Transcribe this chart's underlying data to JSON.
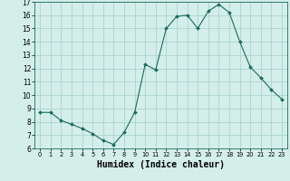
{
  "x": [
    0,
    1,
    2,
    3,
    4,
    5,
    6,
    7,
    8,
    9,
    10,
    11,
    12,
    13,
    14,
    15,
    16,
    17,
    18,
    19,
    20,
    21,
    22,
    23
  ],
  "y": [
    8.7,
    8.7,
    8.1,
    7.8,
    7.5,
    7.1,
    6.6,
    6.3,
    7.2,
    8.7,
    12.3,
    11.9,
    15.0,
    15.9,
    16.0,
    15.0,
    16.3,
    16.8,
    16.2,
    14.0,
    12.1,
    11.3,
    10.4,
    9.7
  ],
  "line_color": "#1a6b5a",
  "marker": "D",
  "marker_size": 2.0,
  "xlim": [
    -0.5,
    23.5
  ],
  "ylim": [
    6,
    17
  ],
  "yticks": [
    6,
    7,
    8,
    9,
    10,
    11,
    12,
    13,
    14,
    15,
    16,
    17
  ],
  "xticks": [
    0,
    1,
    2,
    3,
    4,
    5,
    6,
    7,
    8,
    9,
    10,
    11,
    12,
    13,
    14,
    15,
    16,
    17,
    18,
    19,
    20,
    21,
    22,
    23
  ],
  "xlabel": "Humidex (Indice chaleur)",
  "bg_color": "#d4eeea",
  "grid_color": "#aad4ce",
  "y_tick_fontsize": 5.5,
  "x_tick_fontsize": 4.8,
  "xlabel_fontsize": 7.0
}
